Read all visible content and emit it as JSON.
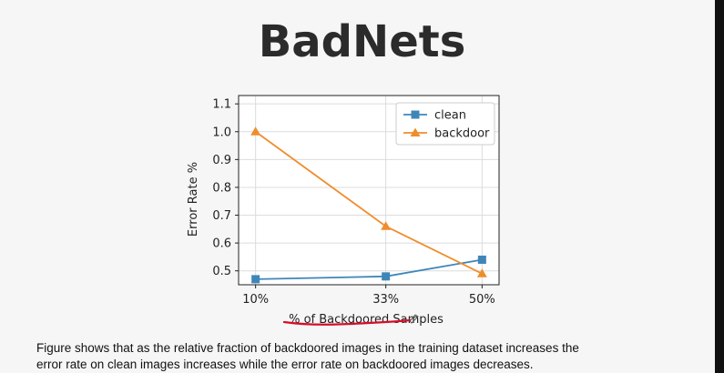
{
  "slide": {
    "title": "BadNets",
    "caption_line1": "Figure shows that as the relative fraction of backdoored images in the training dataset increases the",
    "caption_line2": "error rate on clean images increases while the error rate on backdoored images decreases."
  },
  "chart_data": {
    "type": "line",
    "title": "",
    "xlabel": "% of Backdoored Samples",
    "ylabel": "Error Rate %",
    "categories": [
      "10%",
      "33%",
      "50%"
    ],
    "x": [
      10,
      33,
      50
    ],
    "xlim": [
      10,
      50
    ],
    "ylim": [
      0.45,
      1.1
    ],
    "yticks": [
      "0.5",
      "0.6",
      "0.7",
      "0.8",
      "0.9",
      "1.0",
      "1.1"
    ],
    "grid": true,
    "legend_position": "top-right",
    "series": [
      {
        "name": "clean",
        "values": [
          0.47,
          0.48,
          0.54
        ],
        "color": "#3f86b8",
        "marker": "square"
      },
      {
        "name": "backdoor",
        "values": [
          1.0,
          0.66,
          0.49
        ],
        "color": "#ef8d2c",
        "marker": "triangle"
      }
    ]
  },
  "annotation": {
    "underline_color": "#d40f2a"
  }
}
